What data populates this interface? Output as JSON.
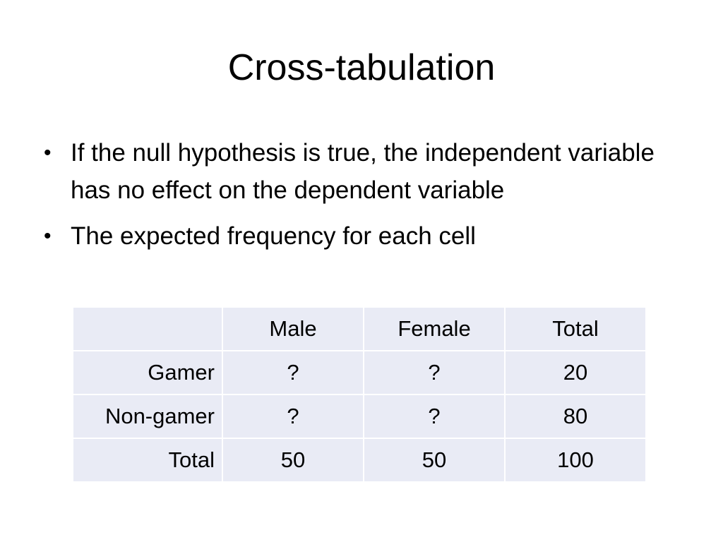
{
  "slide": {
    "title": "Cross-tabulation",
    "bullets": [
      "If the null hypothesis is true, the independent variable has no effect on the dependent variable",
      "The expected frequency for each cell"
    ],
    "bullet_glyph": "•"
  },
  "table": {
    "corner": "",
    "columns": [
      "Male",
      "Female",
      "Total"
    ],
    "rows": [
      {
        "label": "Gamer",
        "cells": [
          "?",
          "?",
          "20"
        ]
      },
      {
        "label": "Non-gamer",
        "cells": [
          "?",
          "?",
          "80"
        ]
      },
      {
        "label": "Total",
        "cells": [
          "50",
          "50",
          "100"
        ]
      }
    ],
    "cell_color": "#e9ebf5"
  }
}
